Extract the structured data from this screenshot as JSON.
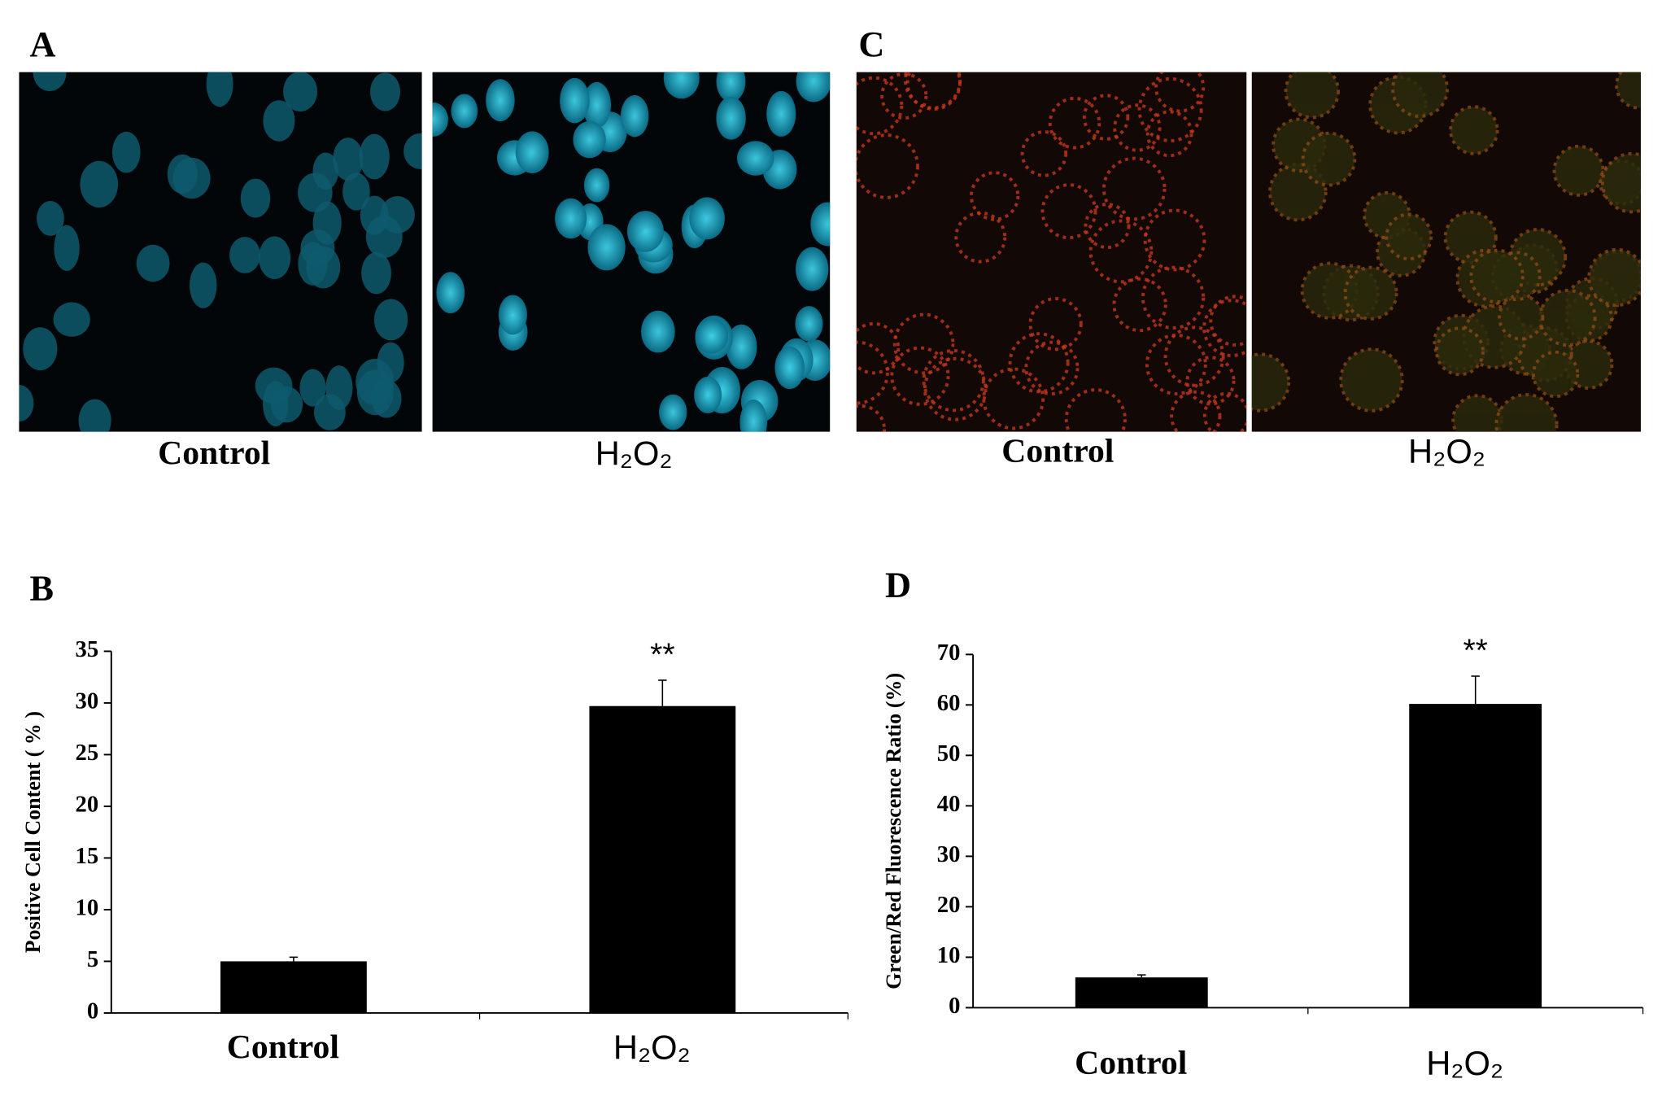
{
  "image_panels": [
    {
      "label": "A",
      "captions": [
        "Control",
        "H₂O₂"
      ]
    },
    {
      "label": "C",
      "captions": [
        "Control",
        "H₂O₂"
      ]
    }
  ],
  "chart_data": [
    {
      "type": "bar",
      "label": "B",
      "ylabel": "Positive Cell Content ( % )",
      "categories": [
        "Control",
        "H₂O₂"
      ],
      "values": [
        5,
        29.7
      ],
      "errors": [
        0.4,
        2.5
      ],
      "annotation": "**",
      "color": "#000000",
      "ylim": [
        0,
        35
      ],
      "yticks": [
        0,
        5,
        10,
        15,
        20,
        25,
        30,
        35
      ]
    },
    {
      "type": "bar",
      "label": "D",
      "ylabel": "Green/Red Fluorescence Ratio (%)",
      "categories": [
        "Control",
        "H₂O₂"
      ],
      "values": [
        6,
        60.2
      ],
      "errors": [
        0.5,
        5.5
      ],
      "annotation": "**",
      "color": "#000000",
      "ylim": [
        0,
        70
      ],
      "yticks": [
        0,
        10,
        20,
        30,
        40,
        50,
        60,
        70
      ]
    }
  ]
}
